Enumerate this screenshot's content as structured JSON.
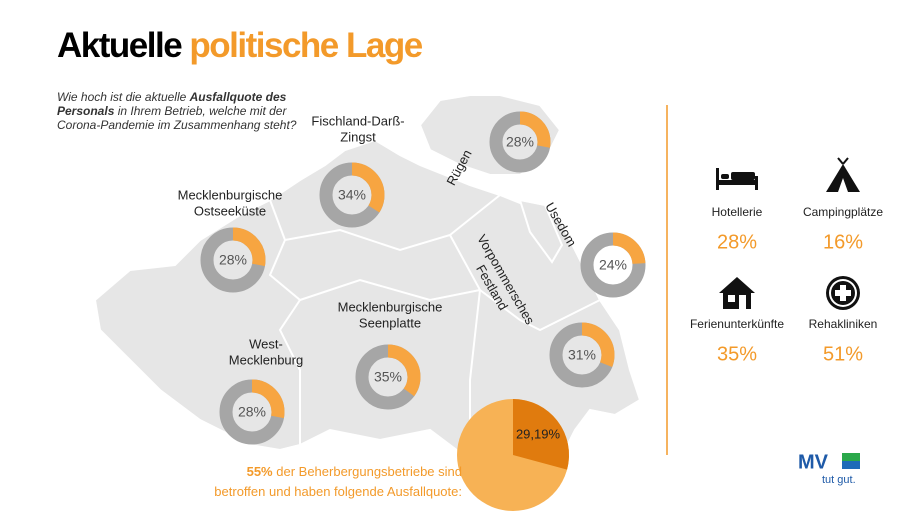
{
  "header": {
    "title_black": "Aktuelle",
    "title_orange": "politische Lage"
  },
  "question": {
    "before": "Wie hoch ist die aktuelle",
    "bold": "Ausfallquote des Personals",
    "after": "in Ihrem Betrieb, welche mit der Corona-Pandemie im Zusammenhang steht?"
  },
  "regions": [
    {
      "name_lines": [
        "Rügen"
      ],
      "value": 28,
      "value_label": "28%"
    },
    {
      "name_lines": [
        "Fischland-Darß-",
        "Zingst"
      ],
      "value": 34,
      "value_label": "34%"
    },
    {
      "name_lines": [
        "Mecklenburgische",
        "Ostseeküste"
      ],
      "value": 28,
      "value_label": "28%"
    },
    {
      "name_lines": [
        "Usedom"
      ],
      "value": 24,
      "value_label": "24%"
    },
    {
      "name_lines": [
        "Vorpommersches",
        "Festland"
      ],
      "value": 31,
      "value_label": "31%"
    },
    {
      "name_lines": [
        "Mecklenburgische",
        "Seenplatte"
      ],
      "value": 35,
      "value_label": "35%"
    },
    {
      "name_lines": [
        "West-",
        "Mecklenburg"
      ],
      "value": 28,
      "value_label": "28%"
    }
  ],
  "affected": {
    "highlight": "55%",
    "text_lines": [
      "der Beherbergungsbetriebe sind",
      "betroffen und haben folgende Ausfallquote:"
    ],
    "pie_value": 29.19,
    "pie_label": "29,19%"
  },
  "categories": [
    {
      "name": "Hotellerie",
      "value": 28,
      "value_label": "28%"
    },
    {
      "name": "Campingplätze",
      "value": 16,
      "value_label": "16%"
    },
    {
      "name": "Ferienunterkünfte",
      "value": 35,
      "value_label": "35%"
    },
    {
      "name": "Rehakliniken",
      "value": 51,
      "value_label": "51%"
    }
  ],
  "logo": {
    "mark": "MV",
    "slogan": "tut gut."
  }
}
